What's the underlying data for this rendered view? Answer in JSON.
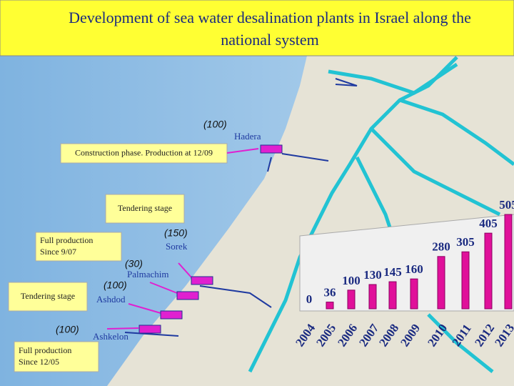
{
  "title": [
    "Development of sea water desalination plants in Israel along the",
    "national system"
  ],
  "plants": [
    {
      "name": "Hadera",
      "capacity": "(100)",
      "status": [
        "Construction phase. Production at 12/09"
      ]
    },
    {
      "name": "Sorek",
      "capacity": "(150)",
      "status": [
        "Tendering stage"
      ]
    },
    {
      "name": "Palmachim",
      "capacity": "(30)",
      "status": [
        "Full production",
        "Since 9/07"
      ]
    },
    {
      "name": "Ashdod",
      "capacity": "(100)",
      "status": [
        "Tendering stage"
      ]
    },
    {
      "name": "Ashkelon",
      "capacity": "(100)",
      "status": [
        "Full production",
        "Since 12/05"
      ]
    }
  ],
  "chart_data": {
    "type": "bar",
    "categories": [
      "2004",
      "2005",
      "2006",
      "2007",
      "2008",
      "2009",
      "2010",
      "2011",
      "2012",
      "2013"
    ],
    "values": [
      0,
      36,
      100,
      130,
      145,
      160,
      280,
      305,
      405,
      505
    ],
    "color": "#e0109a"
  }
}
